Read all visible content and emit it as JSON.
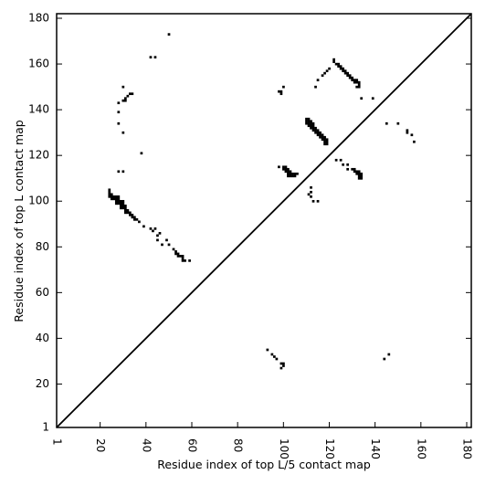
{
  "chart_data": {
    "type": "scatter",
    "xlabel": "Residue index of top L/5 contact map",
    "ylabel": "Residue index of top L contact map",
    "xlim": [
      1,
      182
    ],
    "ylim": [
      1,
      182
    ],
    "x_ticks": [
      1,
      20,
      40,
      60,
      80,
      100,
      120,
      140,
      160,
      180
    ],
    "y_ticks": [
      1,
      20,
      40,
      60,
      80,
      100,
      120,
      140,
      160,
      180
    ],
    "x_tick_labels": [
      "1",
      "20",
      "40",
      "60",
      "80",
      "100",
      "120",
      "140",
      "160",
      "180"
    ],
    "y_tick_labels": [
      "1",
      "20",
      "40",
      "60",
      "80",
      "100",
      "120",
      "140",
      "160",
      "180"
    ],
    "diagonal": true,
    "grid": false,
    "marker_color": "#000000",
    "series": [
      {
        "points": [
          [
            50,
            173
          ],
          [
            42,
            163
          ],
          [
            44,
            163
          ],
          [
            30,
            150
          ],
          [
            33,
            147
          ],
          [
            34,
            147
          ],
          [
            32,
            146
          ],
          [
            31,
            145
          ],
          [
            30,
            144
          ],
          [
            31,
            144
          ],
          [
            28,
            143
          ],
          [
            28,
            139
          ],
          [
            28,
            134
          ],
          [
            30,
            130
          ],
          [
            38,
            121
          ],
          [
            28,
            113
          ],
          [
            30,
            113
          ],
          [
            24,
            105
          ],
          [
            24,
            104
          ],
          [
            24,
            103
          ],
          [
            25,
            103
          ],
          [
            24,
            102
          ],
          [
            25,
            102
          ],
          [
            26,
            102
          ],
          [
            27,
            102
          ],
          [
            28,
            102
          ],
          [
            25,
            101
          ],
          [
            26,
            101
          ],
          [
            27,
            101
          ],
          [
            28,
            101
          ],
          [
            27,
            100
          ],
          [
            28,
            100
          ],
          [
            29,
            100
          ],
          [
            30,
            100
          ],
          [
            27,
            99
          ],
          [
            28,
            99
          ],
          [
            29,
            99
          ],
          [
            30,
            99
          ],
          [
            29,
            98
          ],
          [
            30,
            98
          ],
          [
            31,
            98
          ],
          [
            29,
            97
          ],
          [
            30,
            97
          ],
          [
            31,
            97
          ],
          [
            31,
            96
          ],
          [
            32,
            96
          ],
          [
            31,
            95
          ],
          [
            32,
            95
          ],
          [
            33,
            95
          ],
          [
            33,
            94
          ],
          [
            34,
            94
          ],
          [
            34,
            93
          ],
          [
            35,
            93
          ],
          [
            35,
            92
          ],
          [
            36,
            92
          ],
          [
            37,
            91
          ],
          [
            39,
            89
          ],
          [
            42,
            88
          ],
          [
            44,
            88
          ],
          [
            43,
            87
          ],
          [
            46,
            86
          ],
          [
            45,
            85
          ],
          [
            45,
            83
          ],
          [
            49,
            83
          ],
          [
            47,
            81
          ],
          [
            50,
            81
          ],
          [
            52,
            79
          ],
          [
            53,
            78
          ],
          [
            53,
            77
          ],
          [
            54,
            77
          ],
          [
            54,
            76
          ],
          [
            55,
            76
          ],
          [
            56,
            76
          ],
          [
            56,
            75
          ],
          [
            56,
            74
          ],
          [
            57,
            74
          ],
          [
            59,
            74
          ],
          [
            98,
            148
          ],
          [
            99,
            148
          ],
          [
            99,
            147
          ],
          [
            100,
            150
          ],
          [
            115,
            153
          ],
          [
            114,
            150
          ],
          [
            122,
            162
          ],
          [
            122,
            161
          ],
          [
            123,
            160
          ],
          [
            124,
            160
          ],
          [
            124,
            159
          ],
          [
            125,
            159
          ],
          [
            125,
            158
          ],
          [
            126,
            158
          ],
          [
            126,
            157
          ],
          [
            127,
            157
          ],
          [
            127,
            156
          ],
          [
            128,
            156
          ],
          [
            128,
            155
          ],
          [
            129,
            155
          ],
          [
            129,
            154
          ],
          [
            130,
            154
          ],
          [
            130,
            153
          ],
          [
            131,
            153
          ],
          [
            132,
            153
          ],
          [
            131,
            152
          ],
          [
            132,
            152
          ],
          [
            133,
            152
          ],
          [
            133,
            151
          ],
          [
            133,
            150
          ],
          [
            132,
            150
          ],
          [
            134,
            145
          ],
          [
            139,
            145
          ],
          [
            120,
            158
          ],
          [
            119,
            157
          ],
          [
            118,
            156
          ],
          [
            117,
            155
          ],
          [
            110,
            136
          ],
          [
            111,
            136
          ],
          [
            110,
            135
          ],
          [
            111,
            135
          ],
          [
            112,
            135
          ],
          [
            110,
            134
          ],
          [
            111,
            134
          ],
          [
            112,
            134
          ],
          [
            113,
            134
          ],
          [
            111,
            133
          ],
          [
            112,
            133
          ],
          [
            113,
            133
          ],
          [
            112,
            132
          ],
          [
            113,
            132
          ],
          [
            114,
            132
          ],
          [
            113,
            131
          ],
          [
            114,
            131
          ],
          [
            115,
            131
          ],
          [
            114,
            130
          ],
          [
            115,
            130
          ],
          [
            116,
            130
          ],
          [
            115,
            129
          ],
          [
            116,
            129
          ],
          [
            117,
            129
          ],
          [
            116,
            128
          ],
          [
            117,
            128
          ],
          [
            118,
            128
          ],
          [
            117,
            127
          ],
          [
            118,
            127
          ],
          [
            119,
            127
          ],
          [
            118,
            126
          ],
          [
            119,
            126
          ],
          [
            118,
            125
          ],
          [
            119,
            125
          ],
          [
            98,
            115
          ],
          [
            100,
            115
          ],
          [
            101,
            115
          ],
          [
            100,
            114
          ],
          [
            101,
            114
          ],
          [
            102,
            114
          ],
          [
            101,
            113
          ],
          [
            102,
            113
          ],
          [
            103,
            113
          ],
          [
            102,
            112
          ],
          [
            103,
            112
          ],
          [
            104,
            112
          ],
          [
            105,
            112
          ],
          [
            106,
            112
          ],
          [
            104,
            111
          ],
          [
            105,
            111
          ],
          [
            102,
            111
          ],
          [
            103,
            111
          ],
          [
            112,
            106
          ],
          [
            112,
            104
          ],
          [
            111,
            103
          ],
          [
            112,
            102
          ],
          [
            113,
            100
          ],
          [
            115,
            100
          ],
          [
            123,
            118
          ],
          [
            125,
            118
          ],
          [
            126,
            116
          ],
          [
            128,
            116
          ],
          [
            128,
            114
          ],
          [
            130,
            114
          ],
          [
            131,
            114
          ],
          [
            131,
            113
          ],
          [
            132,
            113
          ],
          [
            133,
            113
          ],
          [
            132,
            112
          ],
          [
            133,
            112
          ],
          [
            133,
            111
          ],
          [
            134,
            111
          ],
          [
            134,
            110
          ],
          [
            133,
            110
          ],
          [
            134,
            112
          ],
          [
            145,
            134
          ],
          [
            150,
            134
          ],
          [
            154,
            131
          ],
          [
            154,
            130
          ],
          [
            156,
            129
          ],
          [
            157,
            126
          ],
          [
            93,
            35
          ],
          [
            95,
            33
          ],
          [
            96,
            32
          ],
          [
            97,
            31
          ],
          [
            99,
            29
          ],
          [
            100,
            29
          ],
          [
            100,
            28
          ],
          [
            99,
            27
          ],
          [
            146,
            33
          ],
          [
            144,
            31
          ]
        ]
      }
    ]
  }
}
